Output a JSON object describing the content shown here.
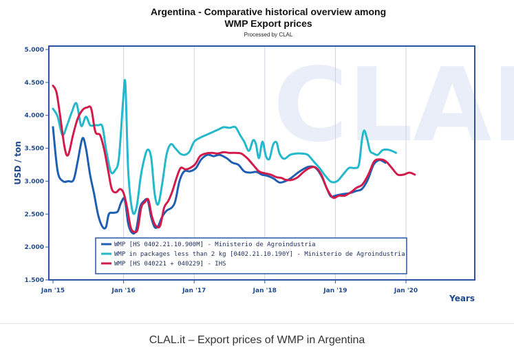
{
  "caption": "CLAL.it – Export prices of WMP in Argentina",
  "watermark": "CLAL",
  "colors": {
    "frame": "#2a55a1",
    "grid": "#c9d2e2",
    "series_1": "#1f5fb2",
    "series_2": "#24b8cc",
    "series_3": "#d21b4b"
  },
  "chart_data": {
    "type": "line",
    "title_line1": "Argentina - Comparative historical overview among",
    "title_line2": "WMP Export prices",
    "subtitle": "Processed by CLAL",
    "xlabel": "Years",
    "ylabel": "USD / ton",
    "x_unit": "months since Jan 2015",
    "xlim": [
      0,
      72
    ],
    "ylim": [
      1500,
      5000
    ],
    "yticks": [
      5000,
      4500,
      4000,
      3500,
      3000,
      2500,
      2000,
      1500
    ],
    "ytick_labels": [
      "5.000",
      "4.500",
      "4.000",
      "3.500",
      "3.000",
      "2.500",
      "2.000",
      "1.500"
    ],
    "xticks": [
      {
        "x": 0,
        "label": "Jan '15"
      },
      {
        "x": 12,
        "label": "Jan '16"
      },
      {
        "x": 24,
        "label": "Jan '17"
      },
      {
        "x": 36,
        "label": "Jan '18"
      },
      {
        "x": 48,
        "label": "Jan '19"
      },
      {
        "x": 60,
        "label": "Jan '20"
      }
    ],
    "grid": "vertical",
    "legend_position": "bottom-center",
    "series": [
      {
        "name": "WMP [HS 0402.21.10.900M] - Ministerio de Agroindustria",
        "color": "#1f5fb2",
        "points": [
          [
            0,
            3820
          ],
          [
            0.8,
            3150
          ],
          [
            1.7,
            3000
          ],
          [
            2.6,
            3000
          ],
          [
            3.5,
            3020
          ],
          [
            4.2,
            3300
          ],
          [
            5,
            3650
          ],
          [
            5.6,
            3500
          ],
          [
            6.3,
            3100
          ],
          [
            7,
            2800
          ],
          [
            7.7,
            2480
          ],
          [
            8.4,
            2310
          ],
          [
            9,
            2300
          ],
          [
            9.5,
            2500
          ],
          [
            10.3,
            2520
          ],
          [
            11,
            2540
          ],
          [
            11.6,
            2680
          ],
          [
            12.2,
            2720
          ],
          [
            12.8,
            2350
          ],
          [
            13.4,
            2220
          ],
          [
            14.1,
            2250
          ],
          [
            14.8,
            2600
          ],
          [
            15.5,
            2700
          ],
          [
            16.1,
            2710
          ],
          [
            16.7,
            2450
          ],
          [
            17.3,
            2300
          ],
          [
            17.9,
            2320
          ],
          [
            18.5,
            2450
          ],
          [
            19.3,
            2550
          ],
          [
            20.2,
            2600
          ],
          [
            20.8,
            2700
          ],
          [
            21.5,
            3000
          ],
          [
            22.3,
            3150
          ],
          [
            23.3,
            3150
          ],
          [
            24.3,
            3200
          ],
          [
            25.2,
            3330
          ],
          [
            26.3,
            3400
          ],
          [
            27.3,
            3380
          ],
          [
            28.3,
            3400
          ],
          [
            29.5,
            3350
          ],
          [
            30.5,
            3280
          ],
          [
            31.5,
            3250
          ],
          [
            32.5,
            3150
          ],
          [
            33.5,
            3130
          ],
          [
            34.6,
            3140
          ],
          [
            35.5,
            3100
          ],
          [
            36.5,
            3080
          ],
          [
            37.5,
            3040
          ],
          [
            38.5,
            2980
          ],
          [
            39.5,
            3000
          ],
          [
            40.5,
            3050
          ],
          [
            41.5,
            3120
          ],
          [
            42.5,
            3180
          ],
          [
            43.5,
            3220
          ],
          [
            44.5,
            3210
          ],
          [
            45.5,
            3100
          ],
          [
            46.5,
            2900
          ],
          [
            47.2,
            2770
          ],
          [
            48,
            2780
          ],
          [
            49,
            2800
          ],
          [
            50.5,
            2820
          ],
          [
            51.5,
            2850
          ],
          [
            52.5,
            2880
          ],
          [
            53.5,
            3020
          ],
          [
            54.5,
            3250
          ],
          [
            55.5,
            3320
          ],
          [
            56.5,
            3280
          ]
        ]
      },
      {
        "name": "WMP in packages less than 2 kg [0402.21.10.190Y] - Ministerio de Agroindustria",
        "color": "#24b8cc",
        "points": [
          [
            0,
            4100
          ],
          [
            0.8,
            3980
          ],
          [
            1.6,
            3700
          ],
          [
            2.4,
            3850
          ],
          [
            3.2,
            4050
          ],
          [
            4,
            4180
          ],
          [
            4.8,
            3840
          ],
          [
            5.6,
            3980
          ],
          [
            6.3,
            3850
          ],
          [
            7,
            3850
          ],
          [
            7.7,
            3850
          ],
          [
            8.4,
            3830
          ],
          [
            9,
            3500
          ],
          [
            9.8,
            3150
          ],
          [
            10.5,
            3160
          ],
          [
            11.2,
            3350
          ],
          [
            11.9,
            4200
          ],
          [
            12.3,
            4480
          ],
          [
            12.8,
            3150
          ],
          [
            13.5,
            2550
          ],
          [
            14.2,
            2600
          ],
          [
            14.9,
            3060
          ],
          [
            15.5,
            3330
          ],
          [
            16.1,
            3480
          ],
          [
            16.7,
            3350
          ],
          [
            17.3,
            2800
          ],
          [
            17.9,
            2650
          ],
          [
            18.6,
            2980
          ],
          [
            19.3,
            3400
          ],
          [
            20,
            3560
          ],
          [
            20.8,
            3500
          ],
          [
            21.6,
            3420
          ],
          [
            22.4,
            3400
          ],
          [
            23.2,
            3450
          ],
          [
            24,
            3600
          ],
          [
            25,
            3660
          ],
          [
            26,
            3700
          ],
          [
            27,
            3740
          ],
          [
            28,
            3780
          ],
          [
            29,
            3820
          ],
          [
            30,
            3810
          ],
          [
            31,
            3820
          ],
          [
            31.8,
            3700
          ],
          [
            32.5,
            3600
          ],
          [
            33.3,
            3460
          ],
          [
            34,
            3620
          ],
          [
            34.5,
            3560
          ],
          [
            35,
            3350
          ],
          [
            35.6,
            3600
          ],
          [
            36.2,
            3380
          ],
          [
            36.8,
            3340
          ],
          [
            37.4,
            3550
          ],
          [
            38,
            3590
          ],
          [
            38.5,
            3420
          ],
          [
            39.3,
            3340
          ],
          [
            40.3,
            3400
          ],
          [
            41.3,
            3420
          ],
          [
            42.3,
            3420
          ],
          [
            43.3,
            3400
          ],
          [
            44.3,
            3300
          ],
          [
            45.3,
            3200
          ],
          [
            46.3,
            3080
          ],
          [
            47.3,
            2990
          ],
          [
            48.3,
            3000
          ],
          [
            49.3,
            3100
          ],
          [
            50.3,
            3200
          ],
          [
            51.3,
            3200
          ],
          [
            52,
            3250
          ],
          [
            52.5,
            3620
          ],
          [
            52.9,
            3770
          ],
          [
            53.4,
            3640
          ],
          [
            53.9,
            3460
          ],
          [
            54.5,
            3420
          ],
          [
            55.2,
            3400
          ],
          [
            56,
            3470
          ],
          [
            56.8,
            3480
          ],
          [
            57.6,
            3460
          ],
          [
            58.3,
            3430
          ]
        ]
      },
      {
        "name": "WMP [HS 040221 + 040229] - IHS",
        "color": "#d21b4b",
        "points": [
          [
            0,
            4450
          ],
          [
            0.6,
            4350
          ],
          [
            1.2,
            4000
          ],
          [
            2,
            3500
          ],
          [
            2.6,
            3400
          ],
          [
            3.4,
            3700
          ],
          [
            4.2,
            3950
          ],
          [
            5,
            4080
          ],
          [
            5.8,
            4120
          ],
          [
            6.5,
            4100
          ],
          [
            7.2,
            3750
          ],
          [
            8,
            3700
          ],
          [
            8.7,
            3480
          ],
          [
            9.4,
            3150
          ],
          [
            10,
            2880
          ],
          [
            10.7,
            2830
          ],
          [
            11.4,
            2880
          ],
          [
            12,
            2820
          ],
          [
            12.6,
            2600
          ],
          [
            13.2,
            2300
          ],
          [
            13.8,
            2230
          ],
          [
            14.4,
            2270
          ],
          [
            15,
            2600
          ],
          [
            15.6,
            2680
          ],
          [
            16.2,
            2720
          ],
          [
            16.8,
            2470
          ],
          [
            17.4,
            2330
          ],
          [
            18.2,
            2320
          ],
          [
            18.9,
            2600
          ],
          [
            19.6,
            2700
          ],
          [
            20.3,
            2850
          ],
          [
            21,
            3050
          ],
          [
            21.7,
            3200
          ],
          [
            22.5,
            3180
          ],
          [
            23.3,
            3200
          ],
          [
            24.2,
            3260
          ],
          [
            25,
            3380
          ],
          [
            26,
            3420
          ],
          [
            27,
            3430
          ],
          [
            28,
            3420
          ],
          [
            29,
            3440
          ],
          [
            30,
            3430
          ],
          [
            31,
            3430
          ],
          [
            32,
            3420
          ],
          [
            33,
            3350
          ],
          [
            34,
            3250
          ],
          [
            35,
            3150
          ],
          [
            36,
            3120
          ],
          [
            37,
            3100
          ],
          [
            38,
            3060
          ],
          [
            38.8,
            3050
          ],
          [
            39.6,
            3020
          ],
          [
            40.6,
            3020
          ],
          [
            41.6,
            3060
          ],
          [
            42.6,
            3140
          ],
          [
            43.6,
            3200
          ],
          [
            44.6,
            3210
          ],
          [
            45.6,
            3100
          ],
          [
            46.6,
            2880
          ],
          [
            47.6,
            2750
          ],
          [
            48.6,
            2780
          ],
          [
            49.6,
            2780
          ],
          [
            50.6,
            2830
          ],
          [
            51.6,
            2900
          ],
          [
            52.6,
            2950
          ],
          [
            53.6,
            3100
          ],
          [
            54.6,
            3300
          ],
          [
            55.6,
            3330
          ],
          [
            56.6,
            3300
          ],
          [
            57.6,
            3200
          ],
          [
            58.6,
            3100
          ],
          [
            59.6,
            3100
          ],
          [
            60.6,
            3130
          ],
          [
            61.5,
            3100
          ]
        ]
      }
    ]
  }
}
